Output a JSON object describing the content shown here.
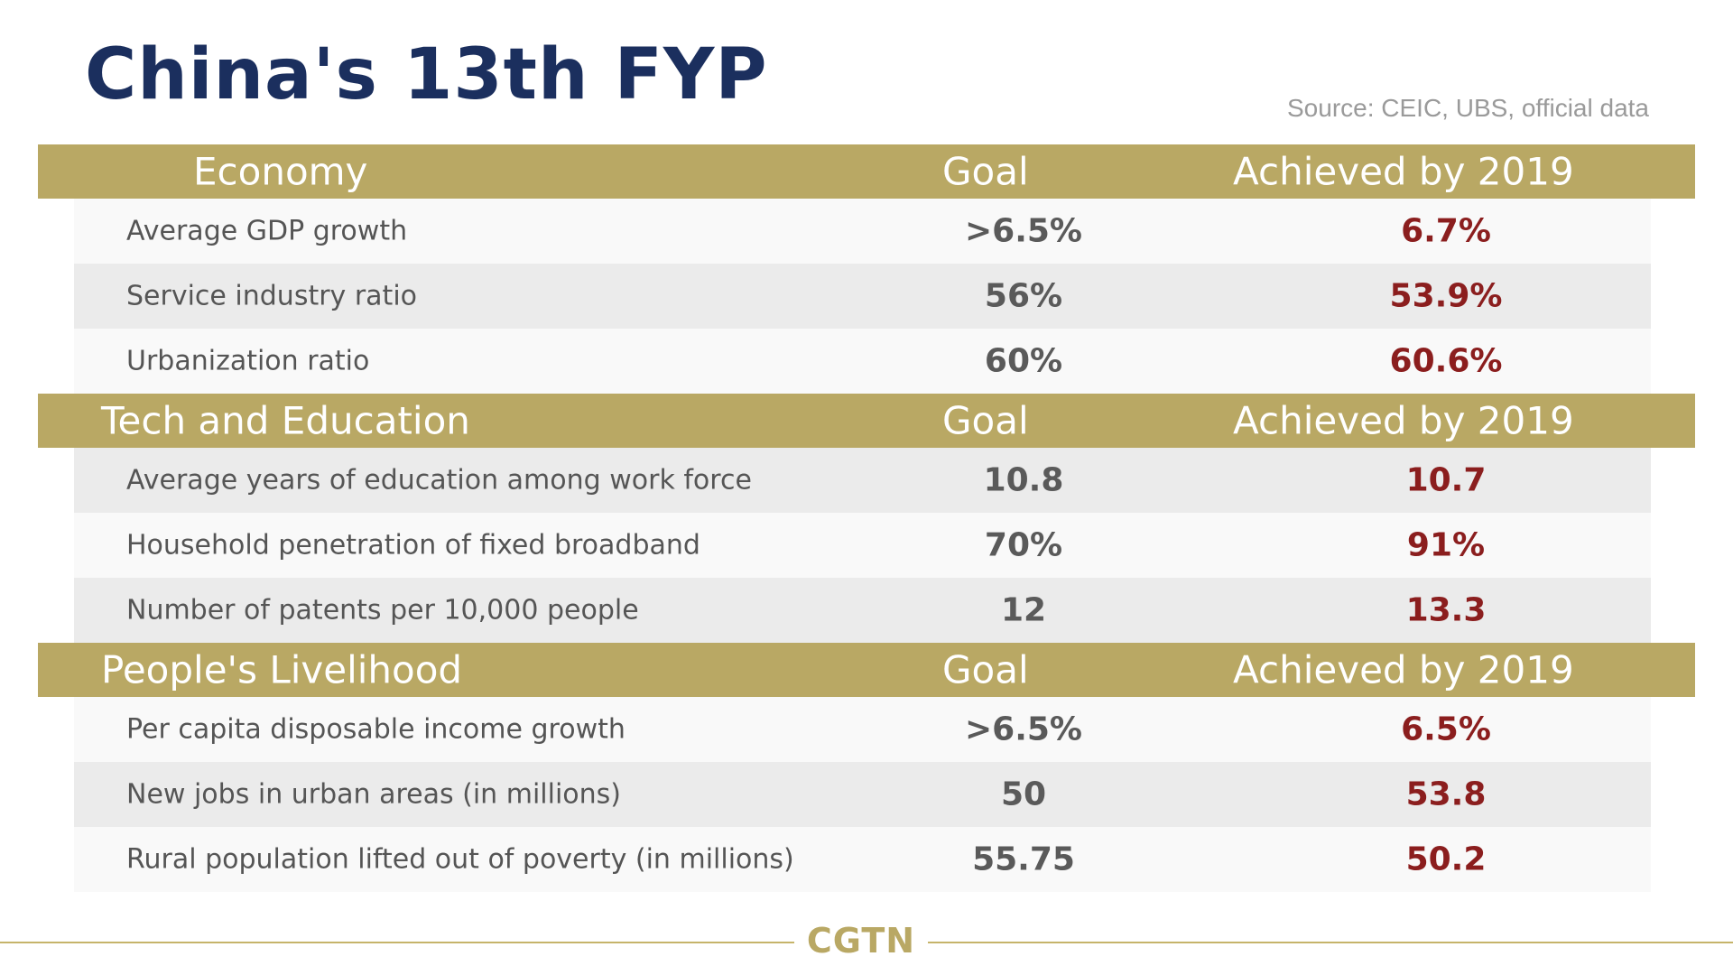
{
  "title": "China's 13th FYP",
  "source": "Source: CEIC, UBS, official data",
  "sections": [
    {
      "title": "Economy",
      "goal_header": "Goal",
      "achieved_header": "Achieved by 2019",
      "rows": [
        {
          "label": "Average GDP growth",
          "goal": ">6.5%",
          "achieved": "6.7%"
        },
        {
          "label": "Service industry ratio",
          "goal": "56%",
          "achieved": "53.9%"
        },
        {
          "label": "Urbanization ratio",
          "goal": "60%",
          "achieved": "60.6%"
        }
      ]
    },
    {
      "title": "Tech and Education",
      "goal_header": "Goal",
      "achieved_header": "Achieved by 2019",
      "rows": [
        {
          "label": "Average years of education among work force",
          "goal": "10.8",
          "achieved": "10.7"
        },
        {
          "label": "Household penetration of fixed broadband",
          "goal": "70%",
          "achieved": "91%"
        },
        {
          "label": "Number of patents per 10,000 people",
          "goal": "12",
          "achieved": "13.3"
        }
      ]
    },
    {
      "title": "People's Livelihood",
      "goal_header": "Goal",
      "achieved_header": "Achieved by 2019",
      "rows": [
        {
          "label": "Per capita disposable income growth",
          "goal": ">6.5%",
          "achieved": "6.5%"
        },
        {
          "label": "New jobs in urban areas (in millions)",
          "goal": "50",
          "achieved": "53.8"
        },
        {
          "label": "Rural population lifted out of poverty (in millions)",
          "goal": "55.75",
          "achieved": "50.2"
        }
      ]
    }
  ],
  "logo": "CGTN",
  "colors": {
    "title": "#1b2f5e",
    "header_bar": "#b9a864",
    "achieved_value": "#8b1e1e",
    "goal_value": "#5a5a5a"
  }
}
